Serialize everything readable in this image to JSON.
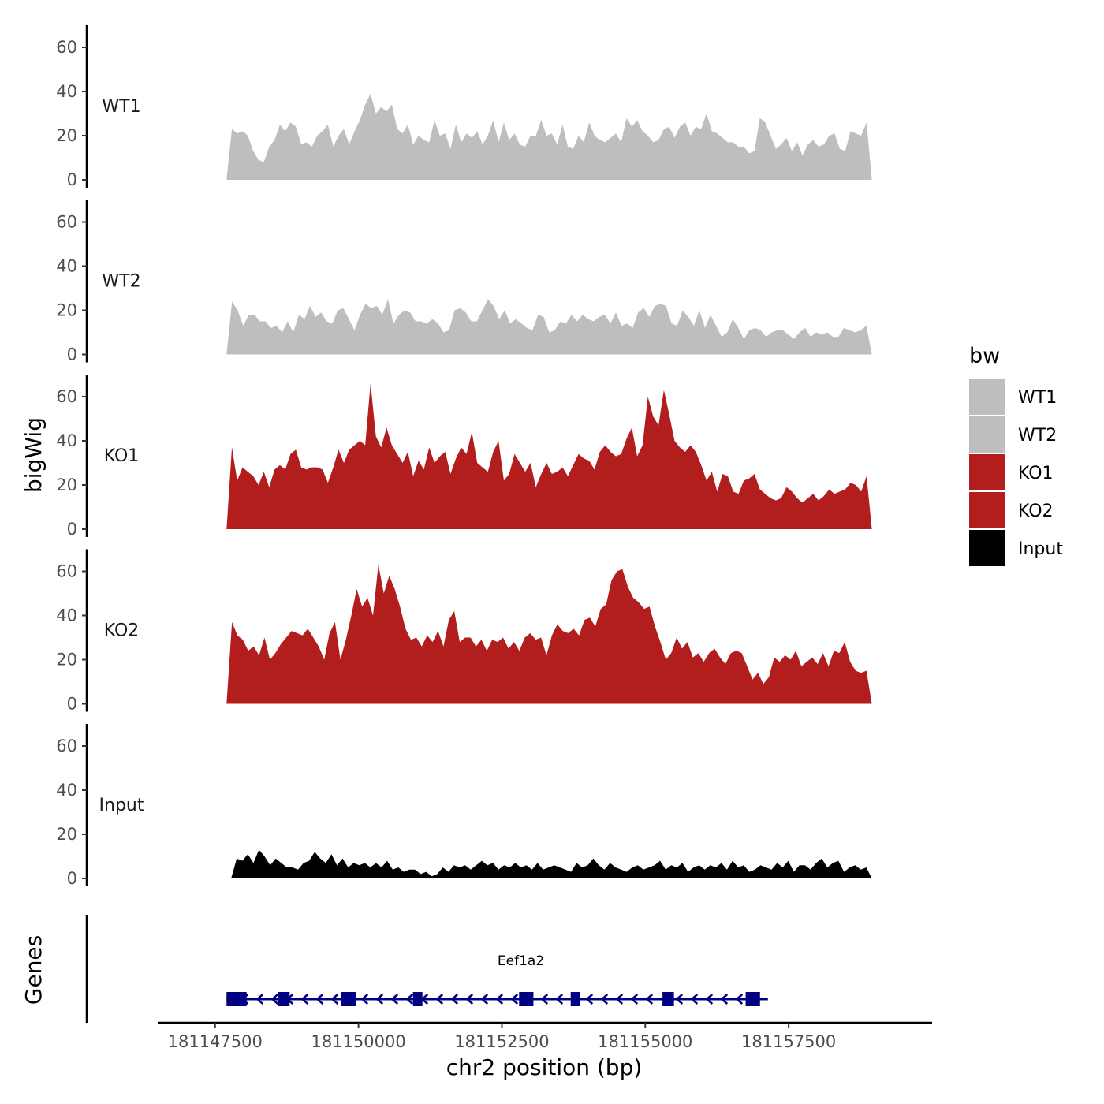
{
  "chart_data": {
    "type": "area",
    "title": "",
    "ylabel": "bigWig",
    "xlabel": "chr2 position (bp)",
    "xlim": [
      181146500,
      181160000
    ],
    "ylim": [
      0,
      70
    ],
    "yticks": [
      0,
      20,
      40,
      60
    ],
    "xticks": [
      181147500,
      181150000,
      181152500,
      181155000,
      181157500
    ],
    "xtick_labels": [
      "181147500",
      "181150000",
      "181152500",
      "181155000",
      "181157500"
    ],
    "x_start": 181147700,
    "x_end": 181158950,
    "input_start": 181147780,
    "legend_title": "bw",
    "legend": [
      {
        "label": "WT1",
        "color": "#bebebe"
      },
      {
        "label": "WT2",
        "color": "#bebebe"
      },
      {
        "label": "KO1",
        "color": "#b21e1e"
      },
      {
        "label": "KO2",
        "color": "#b21e1e"
      },
      {
        "label": "Input",
        "color": "#000000"
      }
    ],
    "series": [
      {
        "name": "WT1",
        "color": "#bebebe",
        "values": [
          0,
          23,
          21,
          22,
          20,
          13,
          9,
          8,
          15,
          18,
          25,
          22,
          26,
          24,
          16,
          17,
          15,
          20,
          22,
          25,
          15,
          20,
          23,
          16,
          22,
          27,
          34,
          39,
          30,
          33,
          31,
          34,
          23,
          21,
          25,
          16,
          20,
          18,
          17,
          27,
          20,
          21,
          14,
          25,
          17,
          21,
          19,
          22,
          16,
          20,
          27,
          17,
          26,
          18,
          21,
          16,
          15,
          20,
          20,
          27,
          20,
          21,
          16,
          25,
          15,
          14,
          20,
          17,
          26,
          20,
          18,
          17,
          19,
          21,
          17,
          28,
          24,
          27,
          22,
          20,
          17,
          18,
          23,
          24,
          19,
          24,
          26,
          20,
          24,
          23,
          30,
          22,
          21,
          19,
          17,
          17,
          15,
          15,
          12,
          13,
          28,
          26,
          20,
          14,
          16,
          19,
          13,
          17,
          11,
          16,
          18,
          15,
          16,
          20,
          21,
          14,
          13,
          22,
          21,
          20,
          26,
          0
        ]
      },
      {
        "name": "WT2",
        "color": "#bebebe",
        "values": [
          0,
          24,
          20,
          13,
          18,
          18,
          15,
          15,
          12,
          13,
          10,
          15,
          10,
          18,
          16,
          22,
          17,
          19,
          15,
          14,
          20,
          21,
          16,
          11,
          18,
          23,
          21,
          22,
          18,
          25,
          14,
          18,
          20,
          19,
          15,
          15,
          14,
          16,
          14,
          10,
          11,
          20,
          21,
          19,
          15,
          15,
          20,
          25,
          22,
          16,
          20,
          14,
          16,
          14,
          12,
          11,
          18,
          17,
          10,
          11,
          15,
          14,
          18,
          15,
          18,
          16,
          15,
          17,
          18,
          14,
          19,
          13,
          14,
          12,
          19,
          21,
          17,
          22,
          23,
          22,
          14,
          13,
          20,
          17,
          13,
          20,
          12,
          18,
          13,
          8,
          10,
          16,
          12,
          7,
          11,
          12,
          11,
          8,
          10,
          11,
          11,
          9,
          7,
          10,
          12,
          8,
          10,
          9,
          10,
          8,
          8,
          12,
          11,
          10,
          11,
          13,
          0
        ]
      },
      {
        "name": "KO1",
        "color": "#b21e1e",
        "values": [
          0,
          37,
          22,
          28,
          26,
          24,
          20,
          26,
          19,
          27,
          29,
          27,
          34,
          36,
          28,
          27,
          28,
          28,
          27,
          21,
          28,
          36,
          30,
          36,
          38,
          40,
          38,
          66,
          42,
          37,
          46,
          38,
          34,
          30,
          35,
          24,
          31,
          27,
          37,
          30,
          33,
          35,
          25,
          32,
          37,
          34,
          44,
          30,
          28,
          26,
          35,
          40,
          22,
          25,
          34,
          30,
          26,
          30,
          19,
          25,
          30,
          25,
          26,
          28,
          24,
          29,
          34,
          32,
          31,
          27,
          35,
          38,
          35,
          33,
          34,
          41,
          46,
          33,
          38,
          60,
          51,
          47,
          63,
          52,
          40,
          37,
          35,
          38,
          35,
          29,
          22,
          26,
          17,
          25,
          24,
          17,
          16,
          22,
          23,
          25,
          18,
          16,
          14,
          13,
          14,
          19,
          17,
          14,
          12,
          14,
          16,
          13,
          15,
          18,
          16,
          17,
          18,
          21,
          20,
          17,
          24,
          0
        ]
      },
      {
        "name": "KO2",
        "color": "#b21e1e",
        "values": [
          0,
          37,
          31,
          29,
          24,
          26,
          22,
          30,
          20,
          23,
          27,
          30,
          33,
          32,
          31,
          34,
          30,
          26,
          20,
          32,
          37,
          20,
          29,
          40,
          52,
          44,
          48,
          40,
          63,
          50,
          58,
          52,
          44,
          34,
          29,
          30,
          26,
          31,
          28,
          33,
          26,
          38,
          42,
          28,
          30,
          30,
          26,
          29,
          24,
          29,
          28,
          30,
          25,
          28,
          24,
          30,
          32,
          29,
          30,
          22,
          31,
          36,
          33,
          32,
          34,
          31,
          38,
          39,
          35,
          43,
          45,
          56,
          60,
          61,
          53,
          48,
          46,
          43,
          44,
          35,
          28,
          20,
          23,
          30,
          25,
          28,
          21,
          23,
          19,
          23,
          25,
          21,
          18,
          23,
          24,
          23,
          17,
          11,
          14,
          9,
          12,
          21,
          19,
          22,
          20,
          24,
          17,
          19,
          21,
          18,
          23,
          17,
          24,
          23,
          28,
          19,
          15,
          14,
          15,
          0
        ]
      },
      {
        "name": "Input",
        "color": "#000000",
        "values": [
          0,
          9,
          8,
          11,
          7,
          13,
          10,
          6,
          9,
          7,
          5,
          5,
          4,
          7,
          8,
          12,
          9,
          7,
          11,
          6,
          9,
          5,
          7,
          6,
          7,
          5,
          7,
          5,
          8,
          4,
          5,
          3,
          4,
          4,
          2,
          3,
          1,
          2,
          5,
          3,
          6,
          5,
          6,
          4,
          6,
          8,
          6,
          7,
          4,
          6,
          5,
          7,
          5,
          6,
          4,
          7,
          4,
          5,
          6,
          5,
          4,
          3,
          7,
          5,
          6,
          9,
          6,
          4,
          7,
          5,
          4,
          3,
          5,
          6,
          4,
          5,
          6,
          8,
          4,
          6,
          5,
          7,
          3,
          5,
          6,
          4,
          6,
          5,
          7,
          4,
          8,
          5,
          6,
          3,
          4,
          6,
          5,
          4,
          7,
          5,
          8,
          3,
          6,
          6,
          4,
          7,
          9,
          5,
          7,
          8,
          3,
          5,
          6,
          4,
          5,
          0
        ]
      }
    ],
    "genes_track": {
      "label": "Genes",
      "gene_name": "Eef1a2",
      "strand": "-",
      "start": 181147700,
      "end": 181157000,
      "exons": [
        {
          "start": 181147700,
          "end": 181148050
        },
        {
          "start": 181148600,
          "end": 181148800
        },
        {
          "start": 181149700,
          "end": 181149950
        },
        {
          "start": 181150950,
          "end": 181151100
        },
        {
          "start": 181152800,
          "end": 181153050
        },
        {
          "start": 181153700,
          "end": 181153850
        },
        {
          "start": 181155300,
          "end": 181155500
        },
        {
          "start": 181156750,
          "end": 181157000
        }
      ]
    }
  }
}
